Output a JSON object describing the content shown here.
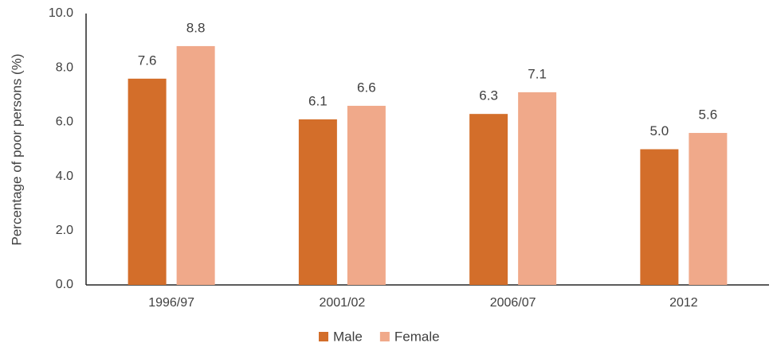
{
  "chart_data": {
    "type": "bar",
    "y_label": "Percentage of poor persons (%)",
    "categories": [
      "1996/97",
      "2001/02",
      "2006/07",
      "2012"
    ],
    "series": [
      {
        "name": "Male",
        "color": "#d36e2a",
        "values": [
          7.6,
          6.1,
          6.3,
          5.0
        ],
        "value_labels": [
          "7.6",
          "6.1",
          "6.3",
          "5.0"
        ]
      },
      {
        "name": "Female",
        "color": "#f0a98a",
        "values": [
          8.8,
          6.6,
          7.1,
          5.6
        ],
        "value_labels": [
          "8.8",
          "6.6",
          "7.1",
          "5.6"
        ]
      }
    ],
    "ylim": [
      0,
      10
    ],
    "yticks": [
      {
        "value": 0,
        "label": "0.0"
      },
      {
        "value": 2,
        "label": "2.0"
      },
      {
        "value": 4,
        "label": "4.0"
      },
      {
        "value": 6,
        "label": "6.0"
      },
      {
        "value": 8,
        "label": "8.0"
      },
      {
        "value": 10,
        "label": "10.0"
      }
    ],
    "grid": false,
    "legend": "bottom"
  }
}
